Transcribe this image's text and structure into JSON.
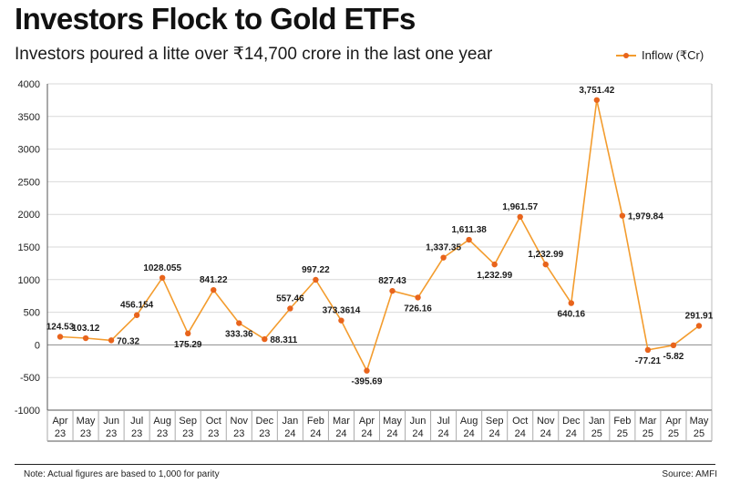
{
  "title": "Investors Flock to Gold ETFs",
  "subtitle": "Investors poured a litte over ₹14,700 crore in the last one year",
  "note": "Note: Actual figures are based to 1,000 for parity",
  "source": "Source: AMFI",
  "colors": {
    "line": "#f39c2e",
    "marker": "#e8641c",
    "grid": "#d9d9d9"
  },
  "chart_data": {
    "type": "line",
    "categories": [
      [
        "Apr",
        "23"
      ],
      [
        "May",
        "23"
      ],
      [
        "Jun",
        "23"
      ],
      [
        "Jul",
        "23"
      ],
      [
        "Aug",
        "23"
      ],
      [
        "Sep",
        "23"
      ],
      [
        "Oct",
        "23"
      ],
      [
        "Nov",
        "23"
      ],
      [
        "Dec",
        "23"
      ],
      [
        "Jan",
        "24"
      ],
      [
        "Feb",
        "24"
      ],
      [
        "Mar",
        "24"
      ],
      [
        "Apr",
        "24"
      ],
      [
        "May",
        "24"
      ],
      [
        "Jun",
        "24"
      ],
      [
        "Jul",
        "24"
      ],
      [
        "Aug",
        "24"
      ],
      [
        "Sep",
        "24"
      ],
      [
        "Oct",
        "24"
      ],
      [
        "Nov",
        "24"
      ],
      [
        "Dec",
        "24"
      ],
      [
        "Jan",
        "25"
      ],
      [
        "Feb",
        "25"
      ],
      [
        "Mar",
        "25"
      ],
      [
        "Apr",
        "25"
      ],
      [
        "May",
        "25"
      ]
    ],
    "series": [
      {
        "name": "Inflow (₹Cr)",
        "values": [
          124.53,
          103.12,
          70.32,
          456.154,
          1028.055,
          175.29,
          841.22,
          333.36,
          88.311,
          557.46,
          997.22,
          373.3614,
          -395.69,
          827.43,
          726.16,
          1337.35,
          1611.38,
          1232.99,
          1961.57,
          1232.99,
          640.16,
          3751.42,
          1979.84,
          -77.21,
          -5.82,
          291.91
        ],
        "labels": [
          "124.53",
          "103.12",
          "70.32",
          "456.154",
          "1028.055",
          "175.29",
          "841.22",
          "333.36",
          "88.311",
          "557.46",
          "997.22",
          "373.3614",
          "-395.69",
          "827.43",
          "726.16",
          "1,337.35",
          "1,611.38",
          "1,232.99",
          "1,961.57",
          "1,232.99",
          "640.16",
          "3,751.42",
          "1,979.84",
          "-77.21",
          "-5.82",
          "291.91"
        ],
        "label_position": [
          "above",
          "above",
          "right",
          "above",
          "above",
          "below",
          "above",
          "below",
          "right",
          "above",
          "above",
          "above",
          "below",
          "above",
          "below",
          "above",
          "above",
          "below",
          "above",
          "above",
          "below",
          "above",
          "right",
          "below",
          "below",
          "above"
        ]
      }
    ],
    "yticks": [
      4000,
      3500,
      3000,
      2500,
      2000,
      1500,
      1000,
      500,
      0,
      -500,
      -1000
    ],
    "ylim": [
      -1000,
      4000
    ],
    "grid": "horizontal",
    "legend_position": "top-right"
  }
}
